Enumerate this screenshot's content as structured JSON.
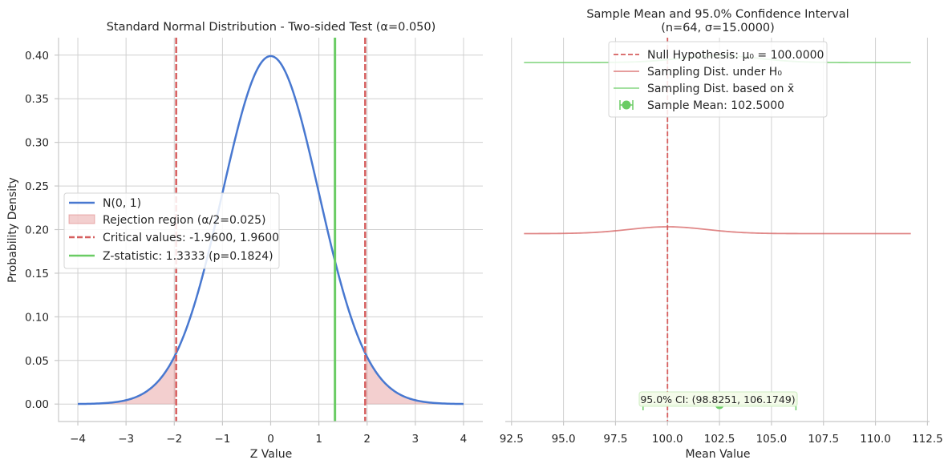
{
  "chart_data": [
    {
      "type": "line",
      "title": "Standard Normal Distribution - Two-sided Test (α=0.050)",
      "xlabel": "Z Value",
      "ylabel": "Probability Density",
      "xlim": [
        -4.4,
        4.4
      ],
      "ylim": [
        -0.02,
        0.42
      ],
      "x_ticks": [
        "−4",
        "−3",
        "−2",
        "−1",
        "0",
        "1",
        "2",
        "3",
        "4"
      ],
      "y_ticks": [
        "0.00",
        "0.05",
        "0.10",
        "0.15",
        "0.20",
        "0.25",
        "0.30",
        "0.35",
        "0.40"
      ],
      "grid": true,
      "legend_position": "center-left",
      "series": [
        {
          "name": "N(0, 1)",
          "kind": "normal-pdf",
          "mean": 0,
          "sd": 1,
          "x_range": [
            -4,
            4
          ],
          "color": "#4878d0"
        },
        {
          "name": "Rejection region (α/2=0.025)",
          "kind": "tail-fill",
          "bounds": [
            -1.96,
            1.96
          ],
          "color": "#d65f5f"
        },
        {
          "name": "Critical values: -1.9600, 1.9600",
          "kind": "vlines",
          "x": [
            -1.96,
            1.96
          ],
          "color": "#d65f5f"
        },
        {
          "name": "Z-statistic: 1.3333 (p=0.1824)",
          "kind": "vline",
          "x": 1.3333,
          "color": "#6acc64"
        }
      ]
    },
    {
      "type": "line",
      "title": "Sample Mean and 95.0% Confidence Interval",
      "subtitle": "(n=64, σ=15.0000)",
      "xlabel": "Mean Value",
      "ylabel": "",
      "xlim": [
        92.2,
        112.6
      ],
      "x_ticks": [
        "92.5",
        "95.0",
        "97.5",
        "100.0",
        "102.5",
        "105.0",
        "107.5",
        "110.0",
        "112.5"
      ],
      "grid": true,
      "legend_position": "upper-center",
      "series": [
        {
          "name": "Null Hypothesis: μ₀ = 100.0000",
          "kind": "vline",
          "x": 100.0,
          "color": "#d65f5f"
        },
        {
          "name": "Sampling Dist. under H₀",
          "kind": "normal-pdf",
          "mean": 100.0,
          "sd": 1.875,
          "x_range": [
            93.1,
            111.7
          ],
          "color": "#d65f5f"
        },
        {
          "name": "Sampling Dist. based on x̄",
          "kind": "normal-pdf",
          "mean": 102.5,
          "sd": 1.875,
          "x_range": [
            93.1,
            111.7
          ],
          "color": "#6acc64"
        },
        {
          "name": "Sample Mean: 102.5000",
          "kind": "point-errorbar",
          "x": 102.5,
          "ci": [
            98.8251,
            106.1749
          ],
          "color": "#6acc64"
        }
      ],
      "annotation": "95.0% CI: (98.8251, 106.1749)"
    }
  ]
}
